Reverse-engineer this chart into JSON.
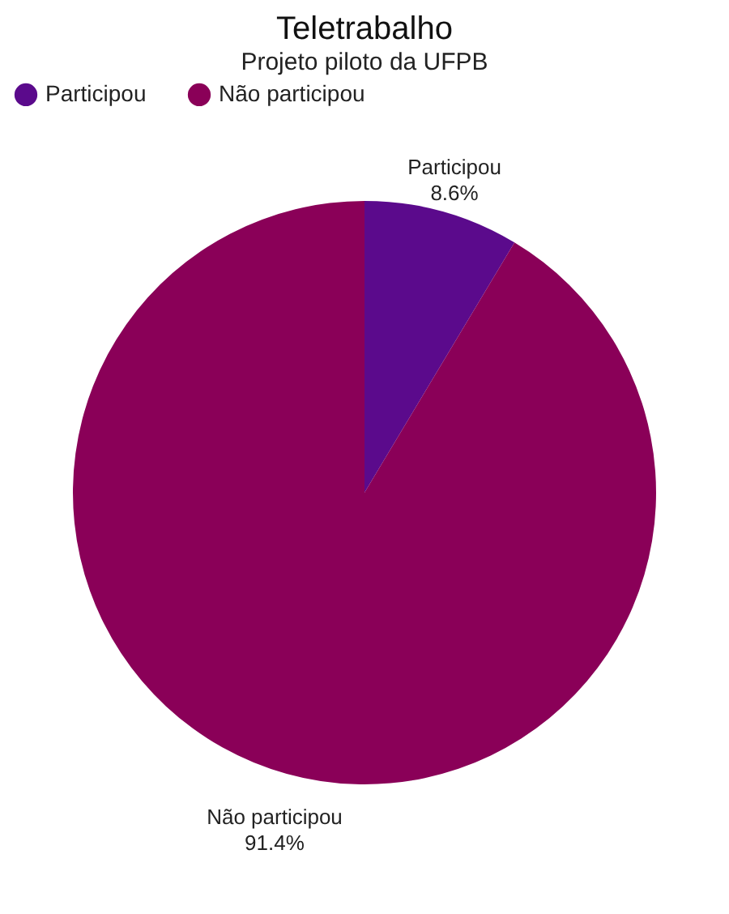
{
  "chart_data": {
    "type": "pie",
    "title": "Teletrabalho",
    "subtitle": "Projeto piloto da UFPB",
    "categories": [
      "Participou",
      "Não participou"
    ],
    "values": [
      8.6,
      91.4
    ],
    "colors": [
      "#5b0a8c",
      "#8a0058"
    ],
    "value_labels": [
      "8.6%",
      "91.4%"
    ],
    "legend": "top"
  }
}
